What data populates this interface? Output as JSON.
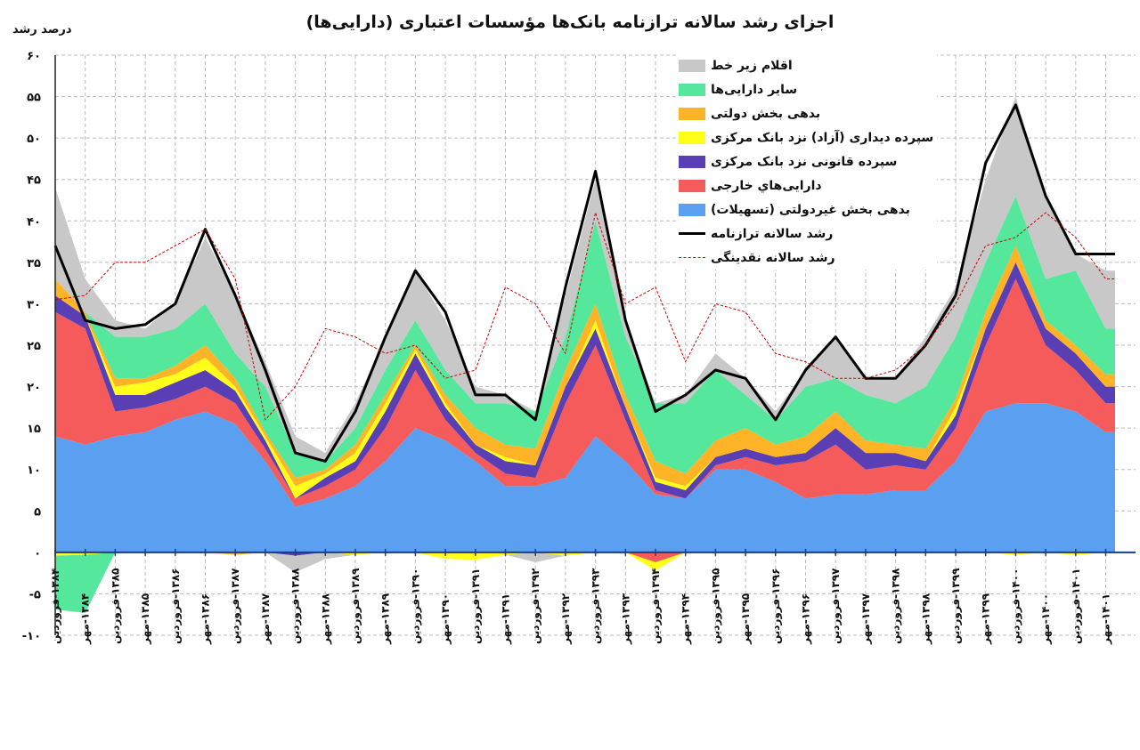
{
  "chart_data": {
    "type": "area",
    "title": "اجزای رشد سالانه ترازنامه بانک‌ها مؤسسات اعتباری (دارایی‌ها)",
    "ylabel": "درصد رشد",
    "xlabel": "",
    "ylim": [
      -10,
      60
    ],
    "grid": true,
    "legend_position": "top-right",
    "yticks": [
      {
        "v": 60,
        "label": "۶۰"
      },
      {
        "v": 55,
        "label": "۵۵"
      },
      {
        "v": 50,
        "label": "۵۰"
      },
      {
        "v": 45,
        "label": "۴۵"
      },
      {
        "v": 40,
        "label": "۴۰"
      },
      {
        "v": 35,
        "label": "۳۵"
      },
      {
        "v": 30,
        "label": "۳۰"
      },
      {
        "v": 25,
        "label": "۲۵"
      },
      {
        "v": 20,
        "label": "۲۰"
      },
      {
        "v": 15,
        "label": "۱۵"
      },
      {
        "v": 10,
        "label": "۱۰"
      },
      {
        "v": 5,
        "label": "۵"
      },
      {
        "v": 0,
        "label": "۰"
      },
      {
        "v": -5,
        "label": "-۵"
      },
      {
        "v": -10,
        "label": "-۱۰"
      }
    ],
    "categories": [
      "۱۳۸۴-فروردین",
      "۱۳۸۴-مهر",
      "۱۳۸۵-فروردین",
      "۱۳۸۵-مهر",
      "۱۳۸۶-فروردین",
      "۱۳۸۶-مهر",
      "۱۳۸۷-فروردین",
      "۱۳۸۷-مهر",
      "۱۳۸۸-فروردین",
      "۱۳۸۸-مهر",
      "۱۳۸۹-فروردین",
      "۱۳۸۹-مهر",
      "۱۳۹۰-فروردین",
      "۱۳۹۰-مهر",
      "۱۳۹۱-فروردین",
      "۱۳۹۱-مهر",
      "۱۳۹۲-فروردین",
      "۱۳۹۲-مهر",
      "۱۳۹۳-فروردین",
      "۱۳۹۳-مهر",
      "۱۳۹۴-فروردین",
      "۱۳۹۴-مهر",
      "۱۳۹۵-فروردین",
      "۱۳۹۵-مهر",
      "۱۳۹۶-فروردین",
      "۱۳۹۶-مهر",
      "۱۳۹۷-فروردین",
      "۱۳۹۷-مهر",
      "۱۳۹۸-فروردین",
      "۱۳۹۸-مهر",
      "۱۳۹۹-فروردین",
      "۱۳۹۹-مهر",
      "۱۴۰۰-فروردین",
      "۱۴۰۰-مهر",
      "۱۴۰۱-فروردین",
      "۱۴۰۱-مهر"
    ],
    "stacked_series": [
      {
        "name": "بدهی بخش غیردولتی (تسهیلات)",
        "color": "#5b9ff0",
        "values": [
          14,
          13,
          14,
          14.5,
          16,
          17,
          15.5,
          11,
          5.5,
          6.5,
          8,
          11,
          15,
          13.5,
          11,
          8,
          8,
          9,
          14,
          11,
          7,
          6.5,
          10,
          10,
          8.5,
          6.5,
          7,
          7,
          7.5,
          7.5,
          11,
          17,
          18,
          18,
          17,
          14.5
        ],
        "negative": [
          0,
          0,
          0,
          0,
          0,
          0,
          0,
          0,
          0,
          0,
          0,
          0,
          0,
          0,
          0,
          0,
          0,
          0,
          0,
          0,
          0,
          0,
          0,
          0,
          0,
          0,
          0,
          0,
          0,
          0,
          0,
          0,
          0,
          0,
          0,
          0
        ]
      },
      {
        "name": "دارایی‌هاي خارجی",
        "color": "#f65b5b",
        "values": [
          15,
          14,
          3,
          3,
          2.5,
          3,
          2.5,
          1.5,
          1,
          1.5,
          2,
          4,
          7,
          2.5,
          1,
          1.5,
          1,
          9,
          11,
          5,
          0.5,
          0,
          0.5,
          1.5,
          2,
          4.5,
          6,
          3,
          3,
          2.5,
          4,
          8,
          15,
          7,
          5,
          3.5
        ],
        "negative": [
          0,
          0,
          0,
          0,
          0,
          0,
          0,
          0,
          0,
          0,
          0,
          0,
          0,
          0,
          0,
          0,
          0,
          0,
          0,
          0,
          -1.2,
          0,
          0,
          0,
          0,
          0,
          0,
          0,
          0,
          0,
          0,
          0,
          0,
          0,
          0,
          0
        ]
      },
      {
        "name": "سپرده قانونی نزد بانک مرکزی",
        "color": "#5a3fb4",
        "values": [
          2,
          1.5,
          2,
          1.5,
          2,
          2,
          1.5,
          1,
          0,
          1,
          1,
          2,
          2,
          1.5,
          1,
          1.5,
          1.5,
          2,
          2,
          1.5,
          1,
          1,
          1,
          1,
          1,
          1,
          2,
          2,
          1.5,
          1,
          1.5,
          2,
          2,
          2,
          2,
          2
        ],
        "negative": [
          0,
          0,
          0,
          0,
          0,
          0,
          0,
          0,
          -0.4,
          0,
          0,
          0,
          0,
          0,
          0,
          0,
          0,
          0,
          0,
          0,
          0,
          0,
          0,
          0,
          0,
          0,
          0,
          0,
          0,
          0,
          0,
          0,
          0,
          0,
          0,
          0
        ]
      },
      {
        "name": "سپرده دیداری (آزاد) نزد بانک مرکزی",
        "color": "#ffff1a",
        "values": [
          0,
          0,
          1,
          1.5,
          1,
          1.5,
          0.5,
          0.5,
          1.5,
          0.5,
          1,
          1,
          0.5,
          0.5,
          0,
          0.5,
          0,
          0,
          1,
          0,
          0.5,
          0.5,
          0,
          0,
          0,
          0,
          0,
          0,
          0,
          0,
          1,
          0,
          0,
          0,
          0,
          0
        ],
        "negative": [
          -0.4,
          -0.3,
          0,
          0,
          0,
          0,
          0,
          0,
          0,
          0,
          -0.3,
          0,
          0,
          -0.8,
          -0.9,
          -0.3,
          0,
          -0.4,
          0,
          0,
          -1,
          0,
          0,
          0,
          0,
          0,
          0,
          0,
          0,
          0,
          0,
          0,
          -0.3,
          0,
          -0.3,
          0
        ]
      },
      {
        "name": "بدهی بخش دولتی",
        "color": "#ffb428",
        "values": [
          2,
          0.5,
          1,
          0.5,
          1,
          1.5,
          1,
          0.5,
          1,
          0.5,
          1,
          1,
          0.5,
          1,
          2,
          1.5,
          2,
          2,
          2,
          1.5,
          2,
          1.5,
          2,
          2.5,
          1.5,
          2,
          2,
          1.5,
          1,
          1.5,
          1,
          2,
          2,
          1,
          1,
          1.5
        ],
        "negative": [
          0,
          0,
          0,
          0,
          0,
          0,
          -0.3,
          0,
          0,
          0,
          0,
          0,
          0,
          0,
          0,
          0,
          0,
          0,
          0,
          0,
          0,
          0,
          0,
          0,
          0,
          0,
          0,
          0,
          0,
          0,
          0,
          0,
          0,
          0,
          0,
          0
        ]
      },
      {
        "name": "سایر دارایی‌ها",
        "color": "#55e89c",
        "values": [
          0,
          0,
          5,
          5,
          4.5,
          5,
          3,
          5.5,
          3,
          1,
          2,
          3,
          3,
          3,
          3,
          5,
          4.5,
          4,
          10,
          7,
          7,
          8.5,
          8.5,
          4,
          3,
          6,
          4,
          5.5,
          5,
          7.5,
          7.5,
          6,
          6,
          5,
          9,
          5.5
        ],
        "negative": [
          -6.5,
          -7,
          0,
          0,
          0,
          0,
          0,
          0,
          0,
          0,
          0,
          0,
          0,
          0,
          0,
          0,
          0,
          0,
          0,
          0,
          0,
          0,
          0,
          0,
          0,
          0,
          0,
          0,
          0,
          0,
          0,
          0,
          0,
          0,
          0,
          0
        ]
      },
      {
        "name": "اقلام زیر خط",
        "color": "#c8c8c8",
        "values": [
          11,
          4,
          2,
          1,
          3,
          8,
          7,
          3,
          2,
          1,
          3,
          4,
          6,
          6,
          2,
          1,
          0,
          5,
          5,
          2,
          0,
          1,
          2,
          2,
          1,
          2,
          5,
          2,
          3,
          6,
          6,
          10,
          12,
          10,
          2,
          7
        ],
        "negative": [
          0,
          0,
          0,
          0,
          0,
          0,
          0,
          0,
          -2,
          -0.8,
          0,
          0,
          0,
          0,
          0,
          0,
          -1.2,
          0,
          0,
          0,
          0,
          0,
          0,
          0,
          0,
          0,
          0,
          0,
          0,
          0,
          0,
          0,
          0,
          0,
          0,
          0
        ]
      }
    ],
    "line_series": [
      {
        "name": "رشد سالانه ترازنامه",
        "color": "#000000",
        "style": "solid",
        "values": [
          37,
          28,
          27,
          27.5,
          30,
          39,
          31,
          22,
          12,
          11,
          17,
          26,
          34,
          29,
          19,
          19,
          16,
          32,
          46,
          28,
          17,
          19,
          22,
          21,
          16,
          22,
          26,
          21,
          21,
          25,
          31,
          47,
          54,
          43,
          36,
          36
        ]
      },
      {
        "name": "رشد سالانه نقدینگی",
        "color": "#cc0000",
        "style": "dashed",
        "values": [
          30.5,
          31,
          35,
          35,
          37,
          39,
          33,
          16,
          20,
          27,
          26,
          24,
          25,
          21,
          22,
          32,
          30,
          24,
          41,
          30,
          32,
          23,
          30,
          29,
          24,
          23,
          21,
          21,
          22,
          25,
          30,
          37,
          38,
          41,
          38,
          33
        ]
      }
    ]
  }
}
